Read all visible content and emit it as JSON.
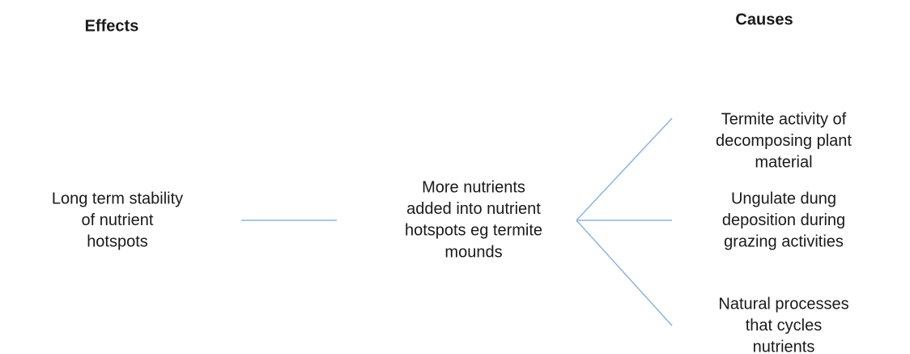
{
  "headers": {
    "effects": "Effects",
    "causes": "Causes"
  },
  "nodes": [
    {
      "lines": [
        "Long term stability",
        "of nutrient",
        "hotspots"
      ]
    },
    {
      "lines": [
        "More nutrients",
        "added into nutrient",
        "hotspots eg termite",
        "mounds"
      ]
    },
    {
      "lines": [
        "Termite activity of",
        "decomposing plant",
        "material"
      ]
    },
    {
      "lines": [
        "Ungulate dung",
        "deposition during",
        "grazing activities"
      ]
    },
    {
      "lines": [
        "Natural processes",
        "that cycles",
        "nutrients"
      ]
    }
  ]
}
